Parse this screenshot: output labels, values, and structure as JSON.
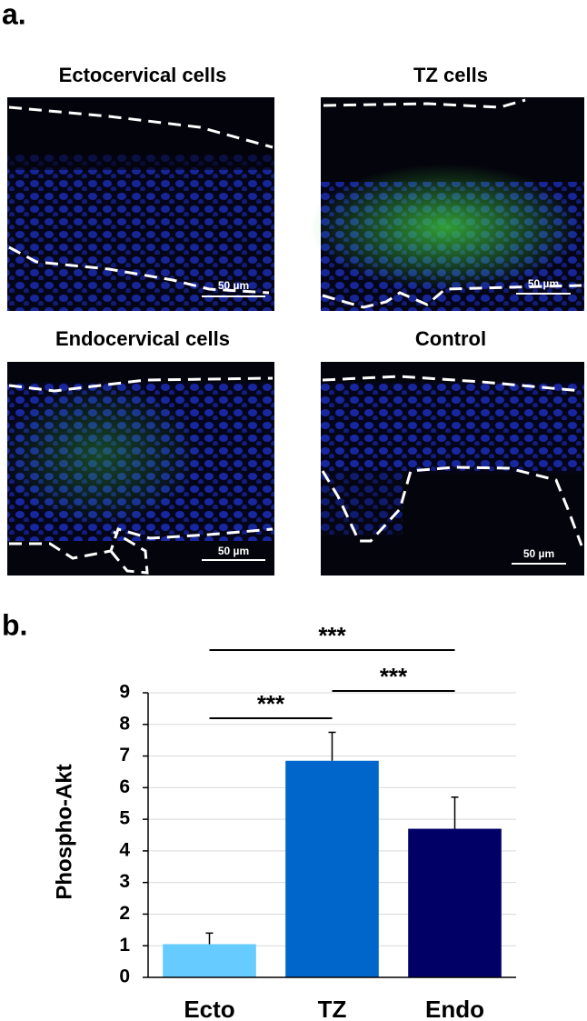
{
  "panel_a": {
    "label": "a.",
    "images": [
      {
        "title": "Ectocervical cells",
        "scale_bar": "50 µm"
      },
      {
        "title": "TZ cells",
        "scale_bar": "50 µm"
      },
      {
        "title": "Endocervical cells",
        "scale_bar": "50 µm"
      },
      {
        "title": "Control",
        "scale_bar": "50 µm"
      }
    ]
  },
  "panel_b_label": "b.",
  "chart_data": {
    "type": "bar",
    "y_label": "Phospho-Akt",
    "categories": [
      "Ecto",
      "TZ",
      "Endo"
    ],
    "values": [
      1.05,
      6.85,
      4.7
    ],
    "errors": [
      0.35,
      0.9,
      1.0
    ],
    "colors": [
      "#66ccff",
      "#0066cc",
      "#000066"
    ],
    "ylim": [
      0,
      9
    ],
    "yticks": [
      0,
      1,
      2,
      3,
      4,
      5,
      6,
      7,
      8,
      9
    ],
    "grid": true,
    "annotations": [
      "***",
      "***",
      "***"
    ]
  }
}
